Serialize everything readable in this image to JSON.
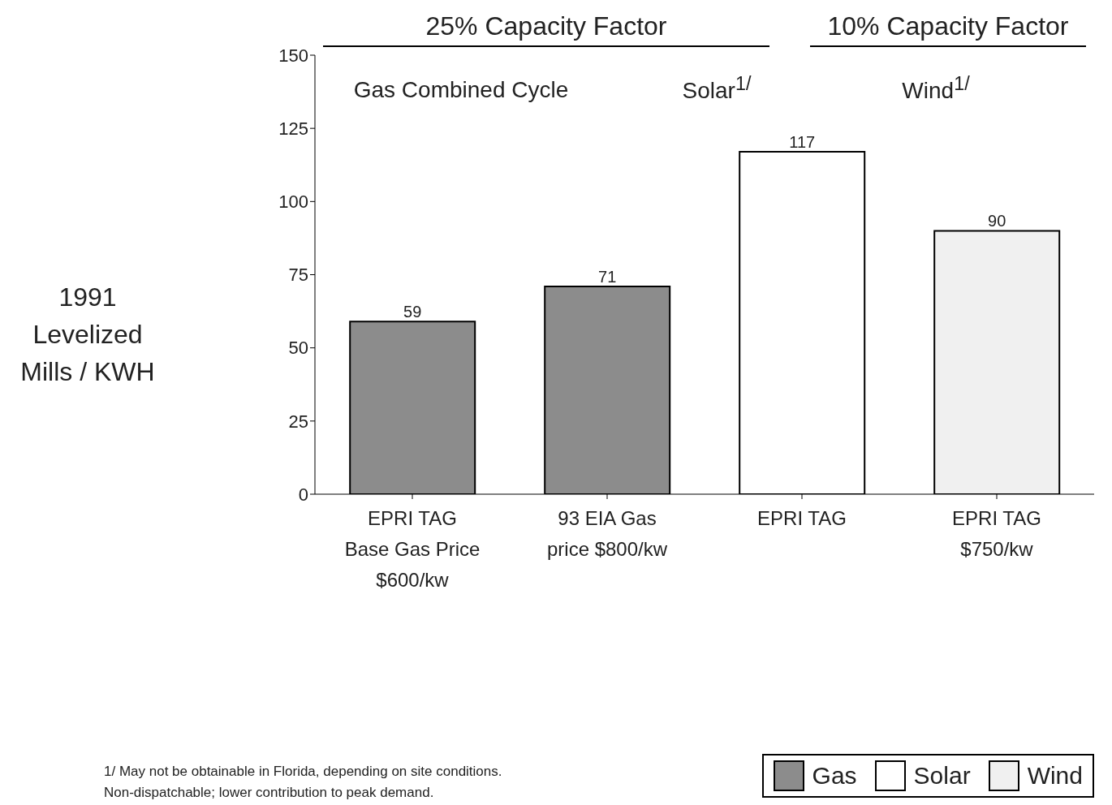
{
  "chart_data": {
    "type": "bar",
    "ylabel": "1991\nLevelized\nMills / KWH",
    "categories": [
      "EPRI TAG\nBase Gas Price\n$600/kw",
      "93 EIA Gas\nprice $800/kw",
      "EPRI TAG",
      "EPRI TAG\n$750/kw"
    ],
    "series": [
      {
        "name": "Gas",
        "color": "#8c8c8c",
        "values": [
          59,
          71,
          null,
          null
        ]
      },
      {
        "name": "Solar",
        "color": "#ffffff",
        "values": [
          null,
          null,
          117,
          null
        ]
      },
      {
        "name": "Wind",
        "color": "#f0f0f0",
        "values": [
          null,
          null,
          null,
          90
        ]
      }
    ],
    "stacked": true,
    "data_labels": true,
    "ylim": [
      0,
      150
    ],
    "yticks": [
      0,
      25,
      50,
      75,
      100,
      125,
      150
    ],
    "grid": false,
    "legend": "bottom right",
    "annotations": [
      "25% Capacity Factor",
      "10% Capacity Factor",
      "Gas Combined Cycle",
      "Solar$^{1/}$",
      "Wind$^{1/}$",
      "1/ May not be obtainable in Florida, depending on site conditions.\nNon-dispatchable; lower contribution to peak demand."
    ]
  }
}
